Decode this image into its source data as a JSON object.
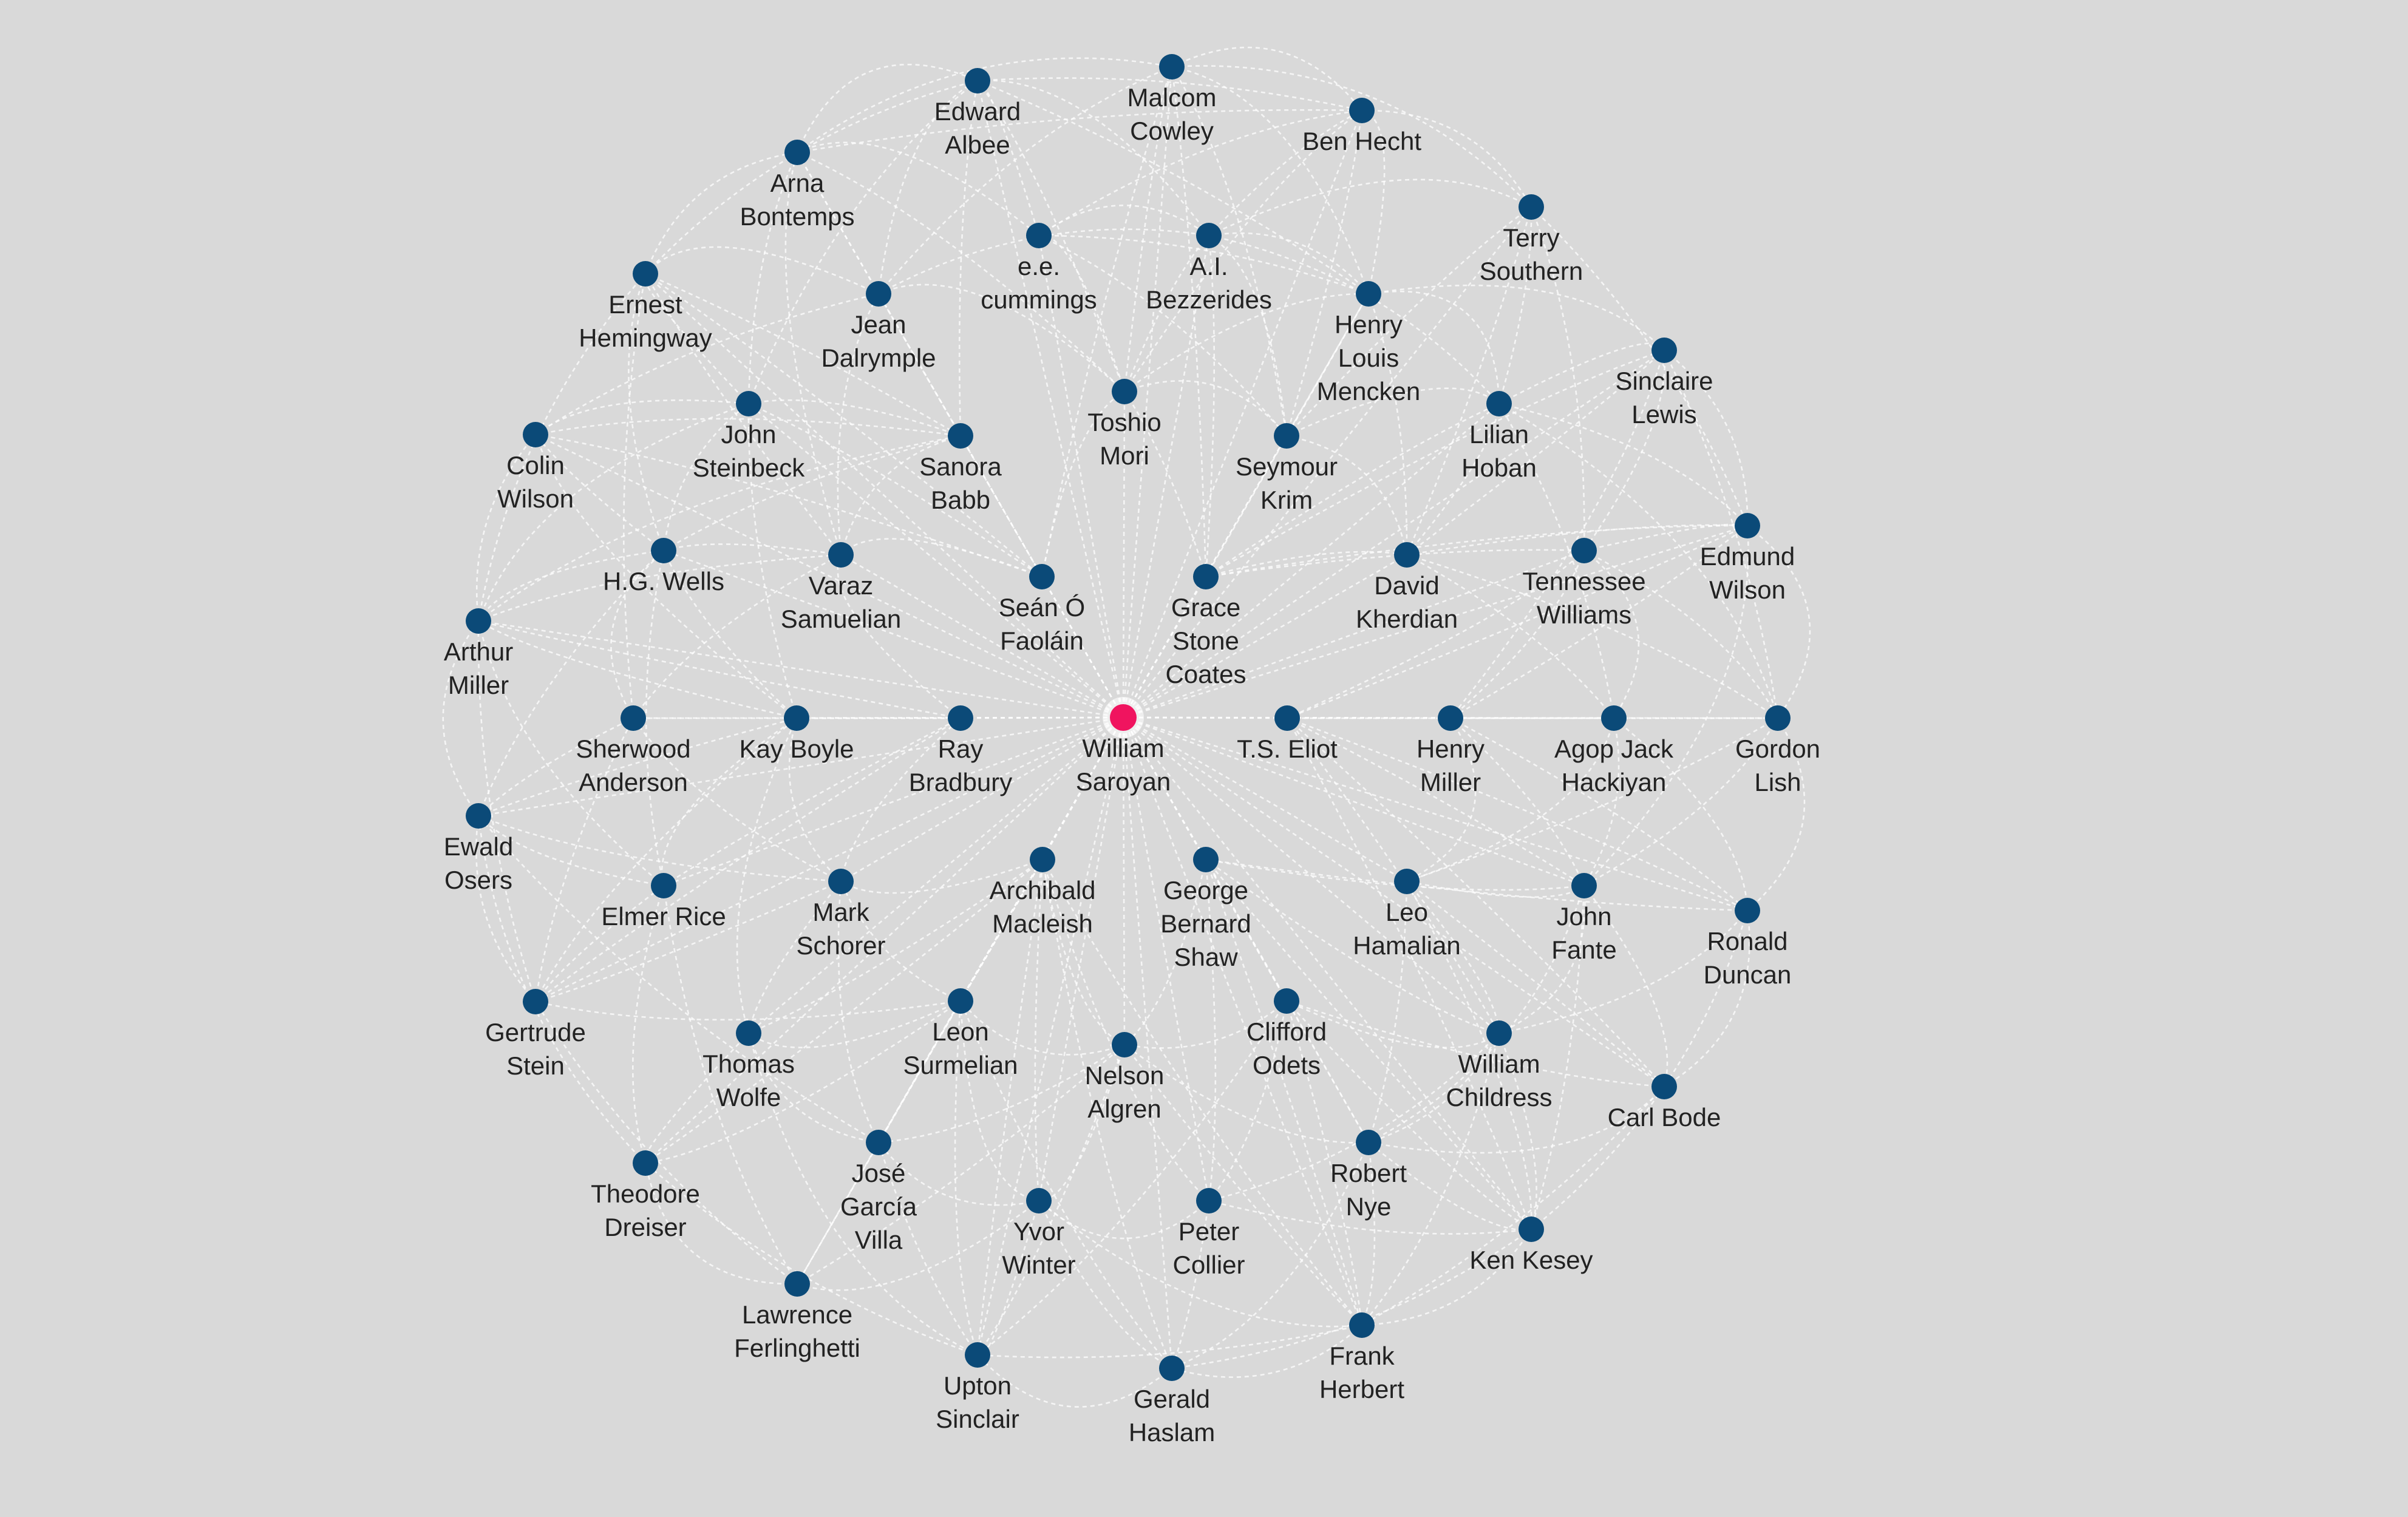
{
  "graph": {
    "center": "ws",
    "nodes": [
      {
        "id": "ws",
        "label": "William\nSaroyan",
        "color": "#f0145f"
      },
      {
        "id": "ea",
        "label": "Edward\nAlbee"
      },
      {
        "id": "mc",
        "label": "Malcom\nCowley"
      },
      {
        "id": "bh",
        "label": "Ben Hecht"
      },
      {
        "id": "ab",
        "label": "Arna\nBontemps"
      },
      {
        "id": "ee",
        "label": "e.e.\ncummings"
      },
      {
        "id": "aib",
        "label": "A.I.\nBezzerides"
      },
      {
        "id": "ts",
        "label": "Terry\nSouthern"
      },
      {
        "id": "eh",
        "label": "Ernest\nHemingway"
      },
      {
        "id": "jd",
        "label": "Jean\nDalrymple"
      },
      {
        "id": "hlm",
        "label": "Henry\nLouis\nMencken"
      },
      {
        "id": "sl",
        "label": "Sinclaire\nLewis"
      },
      {
        "id": "js",
        "label": "John\nSteinbeck"
      },
      {
        "id": "tm",
        "label": "Toshio\nMori"
      },
      {
        "id": "lh",
        "label": "Lilian\nHoban"
      },
      {
        "id": "cw",
        "label": "Colin\nWilson"
      },
      {
        "id": "sb",
        "label": "Sanora\nBabb"
      },
      {
        "id": "sk",
        "label": "Seymour\nKrim"
      },
      {
        "id": "ew",
        "label": "Edmund\nWilson"
      },
      {
        "id": "hgw",
        "label": "H.G. Wells"
      },
      {
        "id": "vs",
        "label": "Varaz\nSamuelian"
      },
      {
        "id": "dk",
        "label": "David\nKherdian"
      },
      {
        "id": "tw",
        "label": "Tennessee\nWilliams"
      },
      {
        "id": "am",
        "label": "Arthur\nMiller"
      },
      {
        "id": "sof",
        "label": "Seán Ó\nFaoláin"
      },
      {
        "id": "gsc",
        "label": "Grace\nStone\nCoates"
      },
      {
        "id": "sa",
        "label": "Sherwood\nAnderson"
      },
      {
        "id": "kb",
        "label": "Kay Boyle"
      },
      {
        "id": "rb",
        "label": "Ray\nBradbury"
      },
      {
        "id": "tse",
        "label": "T.S. Eliot"
      },
      {
        "id": "hm",
        "label": "Henry\nMiller"
      },
      {
        "id": "ajh",
        "label": "Agop Jack\nHackiyan"
      },
      {
        "id": "gl",
        "label": "Gordon\nLish"
      },
      {
        "id": "eo",
        "label": "Ewald\nOsers"
      },
      {
        "id": "er",
        "label": "Elmer Rice"
      },
      {
        "id": "ms",
        "label": "Mark\nSchorer"
      },
      {
        "id": "amac",
        "label": "Archibald\nMacleish"
      },
      {
        "id": "gbs",
        "label": "George\nBernard\nShaw"
      },
      {
        "id": "lham",
        "label": "Leo\nHamalian"
      },
      {
        "id": "jf",
        "label": "John\nFante"
      },
      {
        "id": "rd",
        "label": "Ronald\nDuncan"
      },
      {
        "id": "gs",
        "label": "Gertrude\nStein"
      },
      {
        "id": "twolf",
        "label": "Thomas\nWolfe"
      },
      {
        "id": "ls",
        "label": "Leon\nSurmelian"
      },
      {
        "id": "na",
        "label": "Nelson\nAlgren"
      },
      {
        "id": "co",
        "label": "Clifford\nOdets"
      },
      {
        "id": "wc",
        "label": "William\nChildress"
      },
      {
        "id": "cb",
        "label": "Carl Bode"
      },
      {
        "id": "td",
        "label": "Theodore\nDreiser"
      },
      {
        "id": "jgv",
        "label": "José\nGarcía\nVilla"
      },
      {
        "id": "rn",
        "label": "Robert\nNye"
      },
      {
        "id": "kk",
        "label": "Ken Kesey"
      },
      {
        "id": "yw",
        "label": "Yvor\nWinter"
      },
      {
        "id": "pc",
        "label": "Peter\nCollier"
      },
      {
        "id": "lf",
        "label": "Lawrence\nFerlinghetti"
      },
      {
        "id": "fh",
        "label": "Frank\nHerbert"
      },
      {
        "id": "us",
        "label": "Upton\nSinclair"
      },
      {
        "id": "gh",
        "label": "Gerald\nHaslam"
      }
    ],
    "node_color": "#0b4a78",
    "edge_color": "#ffffff",
    "background": "#d9d9d9"
  }
}
